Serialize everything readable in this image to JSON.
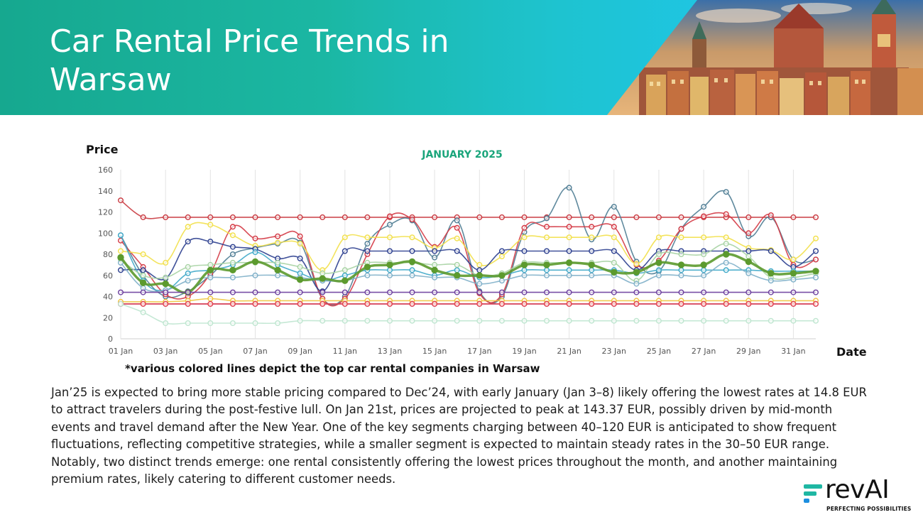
{
  "header": {
    "title": "Car Rental Price Trends in Warsaw"
  },
  "note": "*various colored lines depict the top car rental companies in Warsaw",
  "summary": "Jan’25 is expected to bring more stable pricing compared to Dec’24, with early January (Jan 3–8) likely offering the lowest rates at 14.8 EUR to attract travelers during the post-festive lull. On Jan 21st, prices are projected to peak at 143.37 EUR, possibly driven by mid-month events and travel demand after the New Year. One of the key segments charging between 40–120 EUR is anticipated to show frequent fluctuations, reflecting competitive strategies, while a smaller segment is expected to maintain steady rates in the 30–50 EUR range. Notably, two distinct trends emerge: one rental consistently offering the lowest prices throughout the month, and another maintaining premium rates, likely catering to different customer needs.",
  "logo": {
    "wordmark": "revAI",
    "tagline": "PERFECTING POSSIBILITIES",
    "colors": [
      "#1fb7a3",
      "#1d8fe0"
    ]
  },
  "chart_data": {
    "type": "line",
    "title": "JANUARY 2025",
    "title_color": "#1aa57b",
    "ylabel": "Price",
    "xlabel": "Date",
    "ylim": [
      0,
      160
    ],
    "yticks": [
      0,
      20,
      40,
      60,
      80,
      100,
      120,
      140,
      160
    ],
    "grid": "vertical",
    "legend": "none",
    "x": [
      "01 Jan",
      "02 Jan",
      "03 Jan",
      "04 Jan",
      "05 Jan",
      "06 Jan",
      "07 Jan",
      "08 Jan",
      "09 Jan",
      "10 Jan",
      "11 Jan",
      "12 Jan",
      "13 Jan",
      "14 Jan",
      "15 Jan",
      "16 Jan",
      "17 Jan",
      "18 Jan",
      "19 Jan",
      "20 Jan",
      "21 Jan",
      "22 Jan",
      "23 Jan",
      "24 Jan",
      "25 Jan",
      "26 Jan",
      "27 Jan",
      "28 Jan",
      "29 Jan",
      "30 Jan",
      "31 Jan",
      "01 Feb"
    ],
    "x_tick_labels": [
      "01 Jan",
      "03 Jan",
      "05 Jan",
      "07 Jan",
      "09 Jan",
      "11 Jan",
      "13 Jan",
      "15 Jan",
      "17 Jan",
      "19 Jan",
      "21 Jan",
      "23 Jan",
      "25 Jan",
      "27 Jan",
      "29 Jan",
      "31 Jan"
    ],
    "series": [
      {
        "color": "#c9383f",
        "values": [
          131,
          115,
          115,
          115,
          115,
          115,
          115,
          115,
          115,
          115,
          115,
          115,
          115,
          115,
          115,
          115,
          115,
          115,
          115,
          115,
          115,
          115,
          115,
          115,
          115,
          115,
          115,
          115,
          115,
          115,
          115,
          115
        ]
      },
      {
        "color": "#4f7d94",
        "values": [
          98,
          60,
          40,
          45,
          60,
          80,
          86,
          90,
          91,
          38,
          40,
          90,
          108,
          112,
          77,
          112,
          45,
          40,
          101,
          114,
          143,
          94,
          125,
          73,
          64,
          104,
          125,
          139,
          97,
          115,
          75,
          75
        ]
      },
      {
        "color": "#d43a45",
        "values": [
          93,
          68,
          42,
          40,
          62,
          106,
          95,
          97,
          97,
          38,
          38,
          80,
          116,
          113,
          87,
          105,
          43,
          42,
          105,
          106,
          106,
          106,
          106,
          70,
          74,
          104,
          116,
          118,
          100,
          117,
          70,
          75
        ]
      },
      {
        "color": "#f2e04a",
        "values": [
          83,
          80,
          72,
          106,
          108,
          98,
          88,
          91,
          90,
          65,
          96,
          96,
          96,
          96,
          86,
          95,
          70,
          78,
          96,
          96,
          96,
          96,
          96,
          71,
          96,
          96,
          96,
          96,
          86,
          84,
          75,
          95
        ]
      },
      {
        "color": "#2c3f8f",
        "values": [
          65,
          65,
          57,
          92,
          92,
          87,
          85,
          76,
          76,
          45,
          83,
          83,
          83,
          83,
          83,
          83,
          65,
          83,
          83,
          83,
          83,
          83,
          83,
          65,
          83,
          83,
          83,
          83,
          83,
          83,
          68,
          83
        ]
      },
      {
        "color": "#3fa9c9",
        "values": [
          98,
          55,
          46,
          62,
          65,
          70,
          82,
          70,
          62,
          55,
          60,
          65,
          65,
          65,
          60,
          65,
          58,
          60,
          65,
          65,
          65,
          65,
          65,
          62,
          65,
          65,
          65,
          65,
          65,
          64,
          64,
          64
        ]
      },
      {
        "color": "#a7d3a3",
        "values": [
          75,
          60,
          58,
          68,
          70,
          72,
          72,
          72,
          68,
          62,
          65,
          72,
          72,
          72,
          70,
          70,
          60,
          62,
          72,
          72,
          72,
          72,
          72,
          55,
          80,
          80,
          80,
          90,
          78,
          58,
          58,
          62
        ]
      },
      {
        "color": "#7fb0c9",
        "values": [
          72,
          48,
          46,
          55,
          58,
          58,
          60,
          60,
          58,
          55,
          55,
          60,
          60,
          60,
          58,
          58,
          52,
          55,
          60,
          60,
          60,
          60,
          60,
          52,
          60,
          60,
          60,
          72,
          62,
          55,
          56,
          58
        ]
      },
      {
        "color": "#5c9a2e",
        "values": [
          77,
          53,
          52,
          44,
          65,
          65,
          73,
          65,
          56,
          57,
          55,
          68,
          70,
          73,
          65,
          60,
          60,
          60,
          70,
          70,
          72,
          70,
          63,
          63,
          72,
          70,
          70,
          80,
          73,
          62,
          62,
          64
        ]
      },
      {
        "color": "#6a3c9c",
        "values": [
          44,
          44,
          44,
          44,
          44,
          44,
          44,
          44,
          44,
          44,
          44,
          44,
          44,
          44,
          44,
          44,
          44,
          44,
          44,
          44,
          44,
          44,
          44,
          44,
          44,
          44,
          44,
          44,
          44,
          44,
          44,
          44
        ]
      },
      {
        "color": "#f0c53f",
        "values": [
          35,
          35,
          35,
          36,
          38,
          36,
          36,
          36,
          36,
          36,
          36,
          36,
          36,
          36,
          36,
          36,
          36,
          36,
          36,
          36,
          36,
          36,
          36,
          36,
          36,
          36,
          36,
          36,
          36,
          36,
          36,
          36
        ]
      },
      {
        "color": "#8a2f86",
        "values": [
          33,
          33,
          33,
          33,
          33,
          33,
          33,
          33,
          33,
          33,
          33,
          33,
          33,
          33,
          33,
          33,
          33,
          33,
          33,
          33,
          33,
          33,
          33,
          33,
          33,
          33,
          33,
          33,
          33,
          33,
          33,
          33
        ]
      },
      {
        "color": "#e8474f",
        "values": [
          33,
          33,
          33,
          33,
          33,
          33,
          33,
          33,
          33,
          33,
          33,
          33,
          33,
          33,
          33,
          33,
          33,
          33,
          33,
          33,
          33,
          33,
          33,
          33,
          33,
          33,
          33,
          33,
          33,
          33,
          33,
          33
        ]
      },
      {
        "color": "#bfe6d0",
        "values": [
          33,
          25,
          14.8,
          14.8,
          14.8,
          14.8,
          14.8,
          14.8,
          17,
          17,
          17,
          17,
          17,
          17,
          17,
          17,
          17,
          17,
          17,
          17,
          17,
          17,
          17,
          17,
          17,
          17,
          17,
          17,
          17,
          17,
          17,
          17
        ]
      }
    ]
  }
}
